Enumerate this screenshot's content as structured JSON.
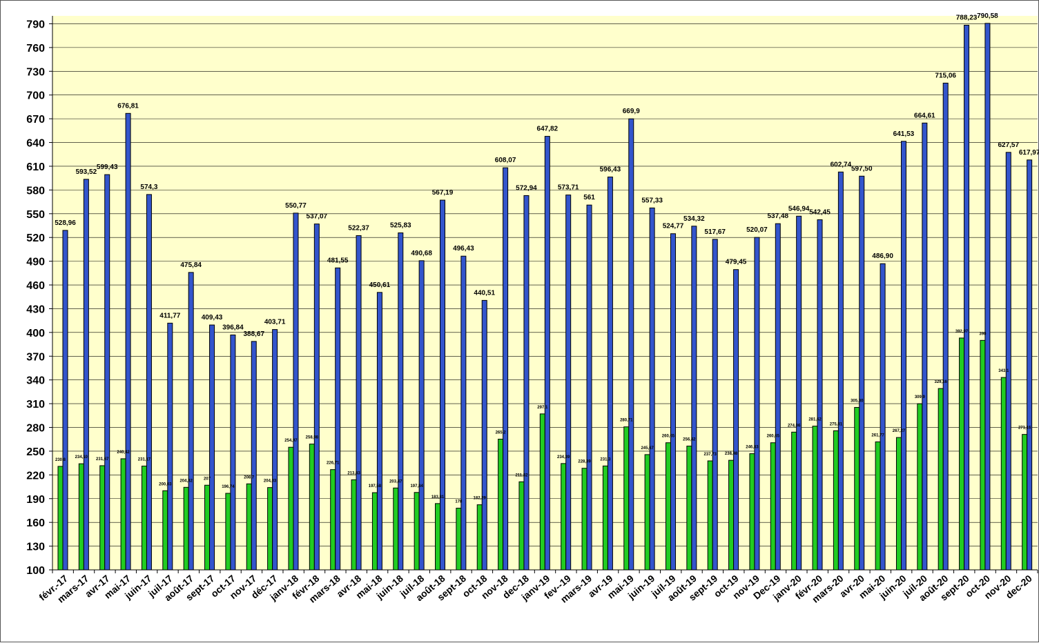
{
  "chart_data": {
    "type": "bar",
    "title": "",
    "xlabel": "",
    "ylabel": "",
    "ylim": [
      100,
      800
    ],
    "yticks": [
      100,
      130,
      160,
      190,
      220,
      250,
      280,
      310,
      340,
      370,
      400,
      430,
      460,
      490,
      520,
      550,
      580,
      610,
      640,
      670,
      700,
      730,
      760,
      790
    ],
    "grid": true,
    "legend": "none",
    "categories": [
      "févr.-17",
      "mars-17",
      "avr-17",
      "mai-17",
      "juin-17",
      "juil-17",
      "août-17",
      "sept-17",
      "oct-17",
      "nov-17",
      "déc-17",
      "janv-18",
      "févr-18",
      "mars-18",
      "avr-18",
      "mai-18",
      "juin-18",
      "juil-18",
      "août-18",
      "sept-18",
      "oct-18",
      "nov-18",
      "dec-18",
      "janv-19",
      "fev--19",
      "mars-19",
      "avr-19",
      "mai-19",
      "juin-19",
      "juil-19",
      "août-19",
      "sept-19",
      "oct-19",
      "nov-19",
      "Dec-19",
      "janv-20",
      "févr-20",
      "mars-20",
      "avr-20",
      "mai-20",
      "juin-20",
      "juil-20",
      "août-20",
      "sept-20",
      "oct-20",
      "nov-20",
      "dec-20"
    ],
    "series": [
      {
        "color": "#22cc22",
        "values": [
          230.8,
          234.1,
          231.67,
          240.42,
          231.17,
          200.03,
          204.32,
          207,
          196.74,
          208.7,
          204.03,
          254.97,
          258.98,
          226.71,
          213.83,
          197.58,
          203.47,
          197.84,
          183.81,
          178,
          182.29,
          265.2,
          211.32,
          297.1,
          234.39,
          228.39,
          231.3,
          280.71,
          245.67,
          260.65,
          256.42,
          237.73,
          238.48,
          246.83,
          260.65,
          274.06,
          281.62,
          275.81,
          305.3,
          261.77,
          267.27,
          309.9,
          329.16,
          392.97,
          390,
          343.1,
          271.16
        ],
        "labels": [
          "230,8",
          "234,10",
          "231,67",
          "240,42",
          "231,17",
          "200,03",
          "204,32",
          "207",
          "196,74",
          "208,7",
          "204,03",
          "254,97",
          "258,98",
          "226,71",
          "213,83",
          "197,58",
          "203,47",
          "197,84",
          "183,81",
          "178",
          "182,29",
          "265,2",
          "211,32",
          "297,1",
          "234,39",
          "228,39",
          "231,3",
          "280,71",
          "245,67",
          "260,65",
          "256,42",
          "237,73",
          "238,48",
          "246,83",
          "260,65",
          "274,06",
          "281,62",
          "275,81",
          "305,30",
          "261,77",
          "267,27",
          "309,9",
          "329,16",
          "392,97",
          "390",
          "343,1",
          "271,16"
        ]
      },
      {
        "color": "#3355cc",
        "values": [
          528.96,
          593.52,
          599.43,
          676.81,
          574.3,
          411.77,
          475.84,
          409.43,
          396.84,
          388.67,
          403.71,
          550.77,
          537.07,
          481.55,
          522.37,
          450.61,
          525.83,
          490.68,
          567.19,
          496.43,
          440.51,
          608.07,
          572.94,
          647.82,
          573.71,
          561,
          596.43,
          669.9,
          557.33,
          524.77,
          534.32,
          517.67,
          479.45,
          520.07,
          537.48,
          546.94,
          542.45,
          602.74,
          597.5,
          486.9,
          641.53,
          664.61,
          715.06,
          788.23,
          790.58,
          627.57,
          617.97
        ],
        "labels": [
          "528,96",
          "593,52",
          "599,43",
          "676,81",
          "574,3",
          "411,77",
          "475,84",
          "409,43",
          "396,84",
          "388,67",
          "403,71",
          "550,77",
          "537,07",
          "481,55",
          "522,37",
          "450,61",
          "525,83",
          "490,68",
          "567,19",
          "496,43",
          "440,51",
          "608,07",
          "572,94",
          "647,82",
          "573,71",
          "561",
          "596,43",
          "669,9",
          "557,33",
          "524,77",
          "534,32",
          "517,67",
          "479,45",
          "520,07",
          "537,48",
          "546,94",
          "542,45",
          "602,74",
          "597,50",
          "486,90",
          "641,53",
          "664,61",
          "715,06",
          "788,23",
          "790,58",
          "627,57",
          "617,97"
        ]
      }
    ]
  }
}
